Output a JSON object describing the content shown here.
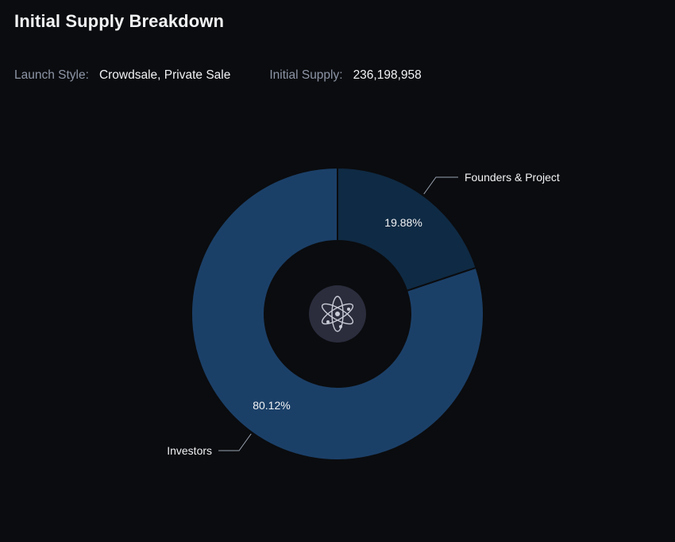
{
  "header": {
    "title": "Initial Supply Breakdown",
    "launch_style_label": "Launch Style:",
    "launch_style_value": "Crowdsale, Private Sale",
    "initial_supply_label": "Initial Supply:",
    "initial_supply_value": "236,198,958"
  },
  "center_icon": "atom-icon",
  "colors": {
    "background": "#0b0c0f",
    "slice_founders": "#0f2a44",
    "slice_investors": "#1b4068",
    "icon_disc": "#2b2d3d",
    "leader_line": "#9aa3b2",
    "text": "#f2f3f5",
    "muted_text": "#8d95a6"
  },
  "chart_data": {
    "type": "pie",
    "donut": true,
    "title": "",
    "labels": [
      "Founders & Project",
      "Investors"
    ],
    "values": [
      19.88,
      80.12
    ],
    "value_labels": [
      "19.88%",
      "80.12%"
    ],
    "unit": "%",
    "legend": "none"
  }
}
